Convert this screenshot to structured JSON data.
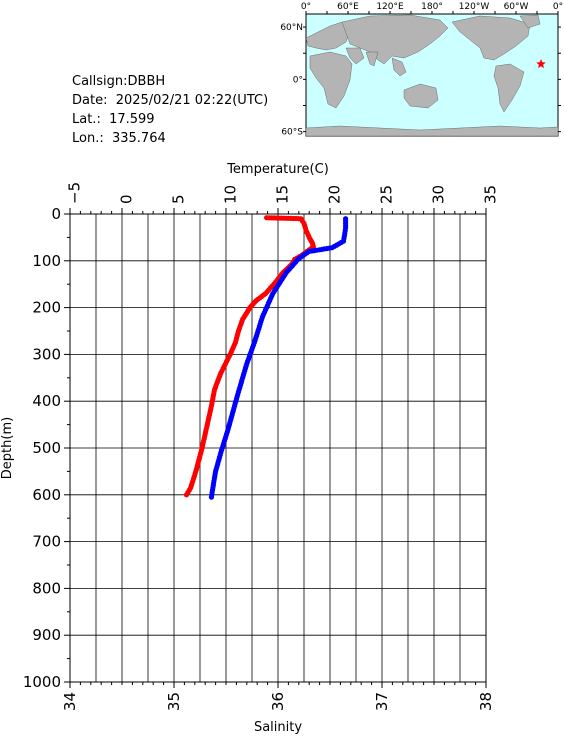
{
  "info": {
    "callsign": "Callsign:DBBH",
    "date": "Date:  2025/02/21 02:22(UTC)",
    "lat": "Lat.:  17.599",
    "lon": "Lon.:  335.764"
  },
  "map": {
    "lon_labels": [
      "0°",
      "60°E",
      "120°E",
      "180°",
      "120°W",
      "60°W",
      "0°"
    ],
    "lat_labels": [
      "60°N",
      "0°",
      "60°S"
    ],
    "ocean_color": "#ccffff",
    "land_color": "#b4b4b4",
    "marker_color": "#ff0000",
    "station_lat": 17.599,
    "station_lon": 335.764
  },
  "chart_data": {
    "type": "line",
    "top_axis": {
      "label": "Temperature(C)",
      "range": [
        -5,
        35
      ],
      "ticks": [
        "−5",
        "0",
        "5",
        "10",
        "15",
        "20",
        "25",
        "30",
        "35"
      ]
    },
    "bottom_axis": {
      "label": "Salinity",
      "range": [
        34,
        38
      ],
      "ticks": [
        "34",
        "35",
        "36",
        "37",
        "38"
      ]
    },
    "y_axis": {
      "label": "Depth(m)",
      "range": [
        0,
        1000
      ],
      "inverted": true,
      "ticks": [
        "0",
        "100",
        "200",
        "300",
        "400",
        "500",
        "600",
        "700",
        "800",
        "900",
        "1000"
      ]
    },
    "grid": true,
    "series": [
      {
        "color": "#ff0000",
        "axis": "temperature",
        "points": [
          [
            13.9,
            8
          ],
          [
            17.2,
            10
          ],
          [
            17.5,
            20
          ],
          [
            17.7,
            35
          ],
          [
            18.0,
            50
          ],
          [
            18.3,
            62
          ],
          [
            18.4,
            70
          ],
          [
            17.8,
            80
          ],
          [
            17.3,
            88
          ],
          [
            16.6,
            97
          ],
          [
            16.3,
            108
          ],
          [
            15.5,
            125
          ],
          [
            14.6,
            150
          ],
          [
            13.8,
            170
          ],
          [
            12.9,
            185
          ],
          [
            12.3,
            200
          ],
          [
            11.6,
            225
          ],
          [
            11.2,
            250
          ],
          [
            10.9,
            275
          ],
          [
            10.4,
            300
          ],
          [
            9.5,
            340
          ],
          [
            8.9,
            375
          ],
          [
            8.6,
            410
          ],
          [
            8.2,
            450
          ],
          [
            7.7,
            500
          ],
          [
            7.1,
            550
          ],
          [
            6.6,
            585
          ],
          [
            6.2,
            600
          ]
        ]
      },
      {
        "color": "#0000ff",
        "axis": "salinity",
        "points": [
          [
            36.65,
            10
          ],
          [
            36.65,
            30
          ],
          [
            36.63,
            58
          ],
          [
            36.52,
            72
          ],
          [
            36.3,
            80
          ],
          [
            36.2,
            95
          ],
          [
            36.08,
            125
          ],
          [
            35.95,
            170
          ],
          [
            35.85,
            220
          ],
          [
            35.78,
            270
          ],
          [
            35.7,
            320
          ],
          [
            35.62,
            380
          ],
          [
            35.57,
            420
          ],
          [
            35.52,
            460
          ],
          [
            35.45,
            510
          ],
          [
            35.4,
            550
          ],
          [
            35.37,
            590
          ],
          [
            35.36,
            605
          ]
        ]
      }
    ]
  }
}
